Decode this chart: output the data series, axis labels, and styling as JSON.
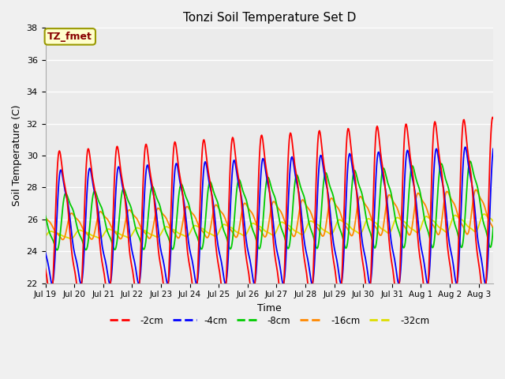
{
  "title": "Tonzi Soil Temperature Set D",
  "xlabel": "Time",
  "ylabel": "Soil Temperature (C)",
  "ylim": [
    22,
    38
  ],
  "xlim": [
    0,
    15.5
  ],
  "tick_labels": [
    "Jul 19",
    "Jul 20",
    "Jul 21",
    "Jul 22",
    "Jul 23",
    "Jul 24",
    "Jul 25",
    "Jul 26",
    "Jul 27",
    "Jul 28",
    "Jul 29",
    "Jul 30",
    "Jul 31",
    "Aug 1",
    "Aug 2",
    "Aug 3"
  ],
  "tick_positions": [
    0,
    1,
    2,
    3,
    4,
    5,
    6,
    7,
    8,
    9,
    10,
    11,
    12,
    13,
    14,
    15
  ],
  "colors": {
    "-2cm": "#ff0000",
    "-4cm": "#0000ff",
    "-8cm": "#00cc00",
    "-16cm": "#ff8800",
    "-32cm": "#dddd00"
  },
  "annotation_text": "TZ_fmet",
  "annotation_fg": "#880000",
  "annotation_bg": "#ffffcc",
  "annotation_edge": "#999900",
  "background_color": "#e8e8e8",
  "plot_bg": "#ebebeb",
  "grid_color": "#ffffff",
  "period": 1.0,
  "n_points": 800,
  "base_mean": 25.5,
  "trend_rate": 0.06,
  "amp_2cm_start": 6.0,
  "amp_2cm_end": 7.5,
  "amp_4cm_start": 4.5,
  "amp_4cm_end": 5.5,
  "amp_8cm_start": 2.2,
  "amp_8cm_end": 3.5,
  "amp_16cm_start": 1.0,
  "amp_16cm_end": 1.8,
  "amp_32cm_start": 0.3,
  "amp_32cm_end": 0.7,
  "lag_2cm": 0.0,
  "lag_4cm": 0.05,
  "lag_8cm": 0.22,
  "lag_16cm": 0.42,
  "lag_32cm": 0.7
}
